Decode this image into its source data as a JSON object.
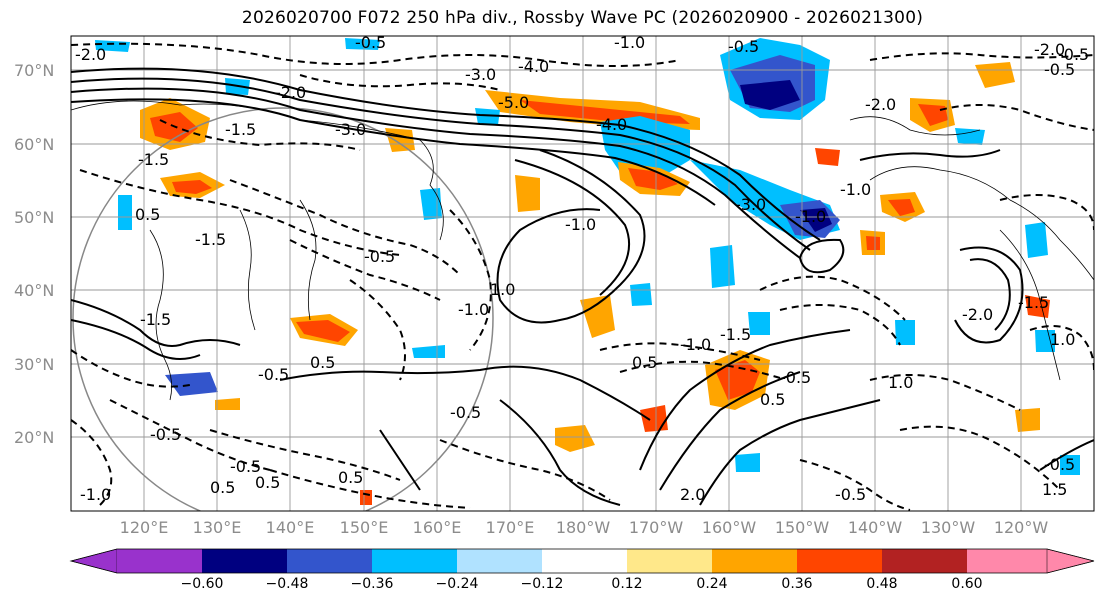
{
  "title": "2026020700 F072 250 hPa div., Rossby Wave PC (2026020900 - 2026021300)",
  "lat_labels": [
    "70°N",
    "60°N",
    "50°N",
    "40°N",
    "30°N",
    "20°N"
  ],
  "lon_labels": [
    "120°E",
    "130°E",
    "140°E",
    "150°E",
    "160°E",
    "170°E",
    "180°W",
    "170°W",
    "160°W",
    "150°W",
    "140°W",
    "130°W",
    "120°W"
  ],
  "colorbar": {
    "ticks": [
      "−0.60",
      "−0.48",
      "−0.36",
      "−0.24",
      "−0.12",
      "0.12",
      "0.24",
      "0.36",
      "0.48",
      "0.60"
    ],
    "colors": [
      "#9932cc",
      "#000080",
      "#3355cc",
      "#00bfff",
      "#b0e2ff",
      "#ffffff",
      "#ffe88a",
      "#ffa500",
      "#ff4500",
      "#b22222",
      "#ff88aa"
    ]
  },
  "contour_labels": [
    "-3.0",
    "-4.0",
    "-5.0",
    "-0.5",
    "-1.0",
    "-1.5",
    "-2.0",
    "-0.5",
    "-3.0",
    "-4.0",
    "-1.5",
    "-2.0",
    "-0.5",
    "-1.0",
    "-1.5",
    "0.5",
    "-0.5",
    "0.5",
    "-0.5",
    "0.5",
    "1.0",
    "-0.5",
    "-1.0",
    "-1.5",
    "0.5",
    "-1.0",
    "-1.0",
    "-2.0",
    "-3.0",
    "-2.0",
    "-0.5",
    "0.5",
    "0.5",
    "-0.5",
    "-0.5",
    "-0.5",
    "-1.5",
    "-2.0",
    "1.0",
    "-0.5",
    "1.5",
    "-0.5",
    "-1.0",
    "2.0",
    "1.0",
    "-1.5",
    "-1.0",
    "0.5"
  ]
}
